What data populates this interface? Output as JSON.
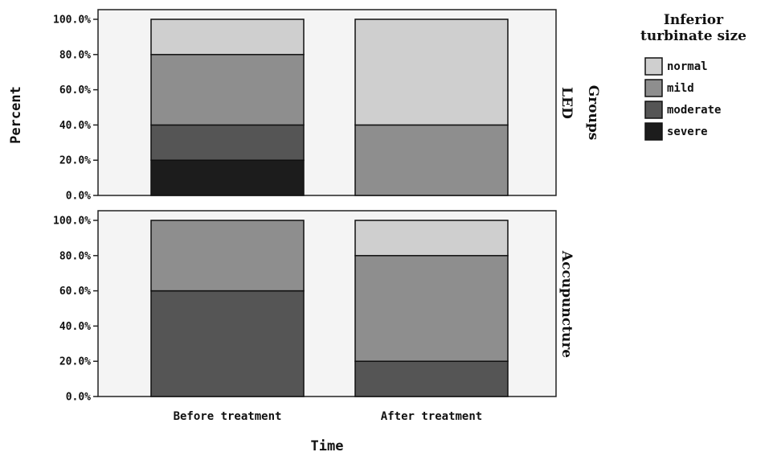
{
  "chart_data": {
    "type": "bar",
    "stacked": true,
    "ylabel": "Percent",
    "xlabel": "Time",
    "facet_label": "Groups",
    "categories": [
      "Before treatment",
      "After treatment"
    ],
    "yticks": [
      "0.0%",
      "20.0%",
      "40.0%",
      "60.0%",
      "80.0%",
      "100.0%"
    ],
    "ylim": [
      0,
      100
    ],
    "legend": {
      "title_lines": [
        "Inferior",
        "turbinate size"
      ],
      "entries": [
        {
          "label": "normal",
          "color": "#cfcfcf"
        },
        {
          "label": "mild",
          "color": "#8e8e8e"
        },
        {
          "label": "moderate",
          "color": "#555555"
        },
        {
          "label": "severe",
          "color": "#1c1c1c"
        }
      ],
      "placement": "right"
    },
    "panels": [
      {
        "label": "LED",
        "series": [
          {
            "name": "severe",
            "values": [
              20,
              0
            ]
          },
          {
            "name": "moderate",
            "values": [
              20,
              0
            ]
          },
          {
            "name": "mild",
            "values": [
              40,
              40
            ]
          },
          {
            "name": "normal",
            "values": [
              20,
              60
            ]
          }
        ]
      },
      {
        "label": "Accupuncture",
        "series": [
          {
            "name": "severe",
            "values": [
              0,
              0
            ]
          },
          {
            "name": "moderate",
            "values": [
              60,
              20
            ]
          },
          {
            "name": "mild",
            "values": [
              40,
              60
            ]
          },
          {
            "name": "normal",
            "values": [
              0,
              20
            ]
          }
        ]
      }
    ]
  }
}
